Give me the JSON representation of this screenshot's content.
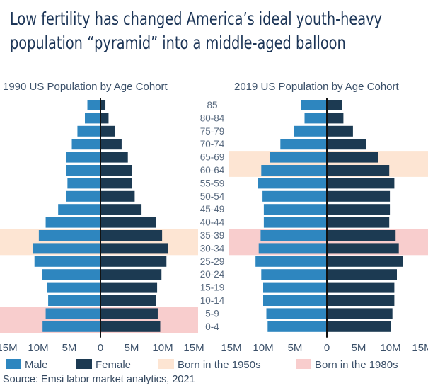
{
  "title": {
    "line1": "Low fertility has changed America’s ideal youth-heavy",
    "line2": "population “pyramid” into a middle-aged balloon"
  },
  "source": "Source: Emsi labor market analytics, 2021",
  "colors": {
    "male": "#2e86bf",
    "female": "#1c3a52",
    "born1950s": "#fde5d3",
    "born1980s": "#f8cdcd",
    "text": "#3b5069",
    "axis": "#111111"
  },
  "legend": [
    {
      "label": "Male",
      "color": "#2e86bf"
    },
    {
      "label": "Female",
      "color": "#1c3a52"
    },
    {
      "label": "Born in the 1950s",
      "color": "#fde5d3"
    },
    {
      "label": "Born in the 1980s",
      "color": "#f8cdcd"
    }
  ],
  "chart_data": [
    {
      "type": "bar",
      "orientation": "horizontal-pyramid",
      "title": "1990 US Population by Age Cohort",
      "categories": [
        "85",
        "80-84",
        "75-79",
        "70-74",
        "65-69",
        "60-64",
        "55-59",
        "50-54",
        "45-49",
        "40-44",
        "35-39",
        "30-34",
        "25-29",
        "20-24",
        "15-19",
        "10-14",
        "5-9",
        "0-4"
      ],
      "series": [
        {
          "name": "Male",
          "values": [
            2.1,
            2.5,
            3.7,
            4.6,
            5.5,
            5.5,
            5.3,
            5.5,
            6.8,
            8.8,
            9.9,
            10.9,
            10.6,
            9.4,
            8.6,
            8.4,
            8.8,
            9.3
          ]
        },
        {
          "name": "Female",
          "values": [
            0.8,
            1.3,
            2.3,
            3.4,
            4.4,
            5.0,
            5.1,
            5.5,
            6.6,
            8.9,
            9.9,
            10.8,
            10.6,
            9.8,
            9.1,
            8.9,
            9.2,
            9.6
          ]
        }
      ],
      "highlights": [
        {
          "label": "Born in the 1950s",
          "categories": [
            "35-39",
            "30-34"
          ]
        },
        {
          "label": "Born in the 1980s",
          "categories": [
            "5-9",
            "0-4"
          ]
        }
      ],
      "xticks": [
        "15M",
        "10M",
        "5M",
        "0",
        "5M",
        "10M",
        "15M"
      ],
      "xlim": [
        -15,
        15
      ]
    },
    {
      "type": "bar",
      "orientation": "horizontal-pyramid",
      "title": "2019 US Population by Age Cohort",
      "categories": [
        "85",
        "80-84",
        "75-79",
        "70-74",
        "65-69",
        "60-64",
        "55-59",
        "50-54",
        "45-49",
        "40-44",
        "35-39",
        "30-34",
        "25-29",
        "20-24",
        "15-19",
        "10-14",
        "5-9",
        "0-4"
      ],
      "series": [
        {
          "name": "Male",
          "values": [
            4.0,
            3.5,
            5.2,
            7.3,
            9.0,
            10.3,
            10.8,
            10.1,
            9.9,
            9.9,
            10.4,
            10.7,
            11.2,
            10.3,
            10.0,
            10.0,
            9.5,
            9.3
          ]
        },
        {
          "name": "Female",
          "values": [
            2.4,
            2.6,
            4.1,
            6.2,
            8.0,
            9.8,
            10.6,
            9.9,
            9.9,
            9.8,
            10.8,
            11.3,
            11.9,
            11.0,
            10.6,
            10.6,
            10.3,
            10.0
          ]
        }
      ],
      "highlights": [
        {
          "label": "Born in the 1950s",
          "categories": [
            "65-69",
            "60-64"
          ]
        },
        {
          "label": "Born in the 1980s",
          "categories": [
            "35-39",
            "30-34"
          ]
        }
      ],
      "xticks": [
        "15M",
        "10M",
        "5M",
        "0",
        "5M",
        "10M",
        "15M"
      ],
      "xlim": [
        -15,
        15
      ]
    }
  ]
}
